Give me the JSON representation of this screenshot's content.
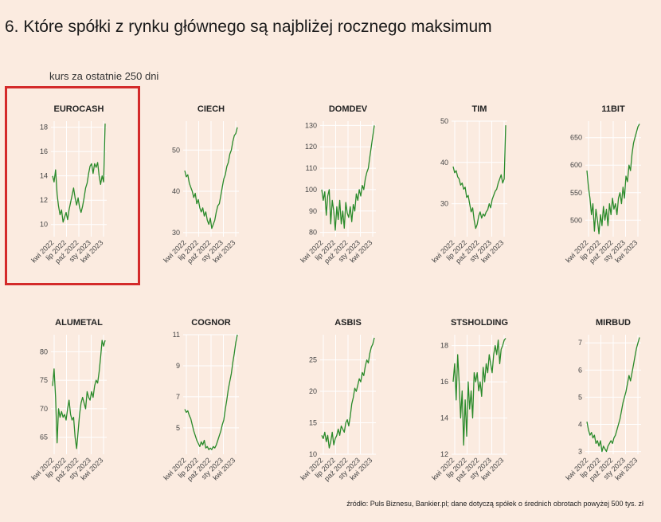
{
  "header": {
    "title": "6. Które spółki z rynku głównego są najbliżej rocznego maksimum",
    "subtitle": "kurs za ostatnie 250 dni"
  },
  "footer": {
    "source": "źródło: Puls Biznesu, Bankier.pl; dane dotyczą spółek o średnich obrotach powyżej 500 tys. zł"
  },
  "colors": {
    "background": "#fbebe0",
    "line": "#2a8a2a",
    "grid": "#ffffff",
    "highlight": "#d42a2a"
  },
  "x_tick_labels": [
    "kwi 2022",
    "lip 2022",
    "paź 2022",
    "sty 2023",
    "kwi 2023"
  ],
  "chart_data": [
    {
      "type": "line",
      "title": "EUROCASH",
      "ylim": [
        9,
        18.5
      ],
      "yticks": [
        10,
        12,
        14,
        16,
        18
      ],
      "highlighted": true,
      "series": [
        {
          "values": [
            14,
            13.5,
            14.5,
            12.5,
            11.5,
            10.8,
            11.2,
            10.2,
            10.6,
            11.0,
            10.4,
            11.2,
            11.8,
            12.4,
            13.0,
            12.2,
            11.6,
            12.2,
            11.4,
            11.0,
            11.5,
            12.2,
            13.0,
            13.4,
            14.2,
            14.8,
            15.0,
            14.2,
            15.0,
            14.7,
            15.1,
            14.0,
            13.3,
            14.0,
            13.5,
            18.3
          ]
        }
      ]
    },
    {
      "type": "line",
      "title": "CIECH",
      "ylim": [
        29,
        57
      ],
      "yticks": [
        30,
        40,
        50
      ],
      "series": [
        {
          "values": [
            45,
            43.5,
            44,
            42,
            41,
            40,
            38.5,
            39.5,
            37,
            38,
            36,
            35,
            36,
            34,
            35,
            33,
            32,
            33.5,
            31,
            32,
            33,
            35,
            36.5,
            37,
            39,
            41,
            43,
            44,
            46,
            47,
            49,
            50,
            52,
            53.5,
            54,
            55.5
          ]
        }
      ]
    },
    {
      "type": "line",
      "title": "DOMDEV",
      "ylim": [
        78,
        132
      ],
      "yticks": [
        80,
        90,
        100,
        110,
        120,
        130
      ],
      "series": [
        {
          "values": [
            100,
            95,
            99,
            88,
            97,
            100,
            84,
            95,
            90,
            81,
            92,
            86,
            95,
            84,
            90,
            82,
            94,
            89,
            87,
            92,
            85,
            93,
            90,
            98,
            95,
            100,
            97,
            102,
            100,
            105,
            108,
            110,
            115,
            120,
            125,
            130
          ]
        }
      ]
    },
    {
      "type": "line",
      "title": "TIM",
      "ylim": [
        22,
        50
      ],
      "yticks": [
        30,
        40,
        50
      ],
      "series": [
        {
          "values": [
            39,
            37.5,
            38,
            36.5,
            36,
            34.5,
            35,
            33.5,
            34,
            31.5,
            32,
            30,
            28,
            29,
            26,
            24,
            25,
            27,
            28,
            26.5,
            27.5,
            27,
            28,
            28.5,
            30,
            29,
            31,
            32,
            33,
            33.5,
            35,
            36,
            37,
            35,
            36,
            49
          ]
        }
      ]
    },
    {
      "type": "line",
      "title": "11BIT",
      "ylim": [
        470,
        680
      ],
      "yticks": [
        500,
        550,
        600,
        650
      ],
      "series": [
        {
          "values": [
            590,
            560,
            540,
            510,
            530,
            480,
            520,
            500,
            475,
            510,
            490,
            525,
            500,
            520,
            490,
            530,
            510,
            540,
            520,
            530,
            510,
            540,
            550,
            530,
            560,
            540,
            580,
            570,
            600,
            590,
            620,
            640,
            650,
            660,
            670,
            675
          ]
        }
      ]
    },
    {
      "type": "line",
      "title": "ALUMETAL",
      "ylim": [
        62,
        83
      ],
      "yticks": [
        65,
        70,
        75,
        80
      ],
      "series": [
        {
          "values": [
            74,
            77,
            72,
            64,
            70,
            68.5,
            69.5,
            68.5,
            69,
            68,
            70,
            71.5,
            69,
            68,
            68.5,
            65,
            63,
            66,
            69,
            71,
            72,
            71,
            70,
            73,
            72,
            71.5,
            73,
            72,
            74,
            75,
            74.5,
            76.5,
            79,
            82,
            81,
            82
          ]
        }
      ]
    },
    {
      "type": "line",
      "title": "COGNOR",
      "ylim": [
        3.3,
        11
      ],
      "yticks": [
        5,
        7,
        9,
        11
      ],
      "series": [
        {
          "values": [
            6.2,
            6.0,
            6.1,
            5.8,
            5.6,
            5.2,
            4.8,
            4.5,
            4.2,
            4.0,
            3.8,
            4.1,
            3.9,
            4.2,
            3.7,
            3.8,
            3.6,
            3.7,
            3.6,
            3.8,
            3.7,
            3.9,
            4.2,
            4.5,
            4.8,
            5.2,
            5.5,
            6.2,
            6.8,
            7.5,
            8.0,
            8.5,
            9.2,
            9.8,
            10.5,
            11.0
          ]
        }
      ]
    },
    {
      "type": "line",
      "title": "ASBIS",
      "ylim": [
        10,
        29
      ],
      "yticks": [
        10,
        15,
        20,
        25
      ],
      "series": [
        {
          "values": [
            13,
            12.5,
            13.5,
            12,
            13,
            11,
            12,
            13.5,
            11.5,
            12.5,
            13,
            14,
            13,
            14.5,
            14,
            13.5,
            15,
            15.5,
            14.5,
            16,
            18,
            19,
            20.5,
            20,
            21,
            22,
            21.5,
            23,
            22.5,
            24,
            25,
            24.5,
            26,
            27,
            27.5,
            28.5
          ]
        }
      ]
    },
    {
      "type": "line",
      "title": "STSHOLDING",
      "ylim": [
        12,
        18.6
      ],
      "yticks": [
        12,
        14,
        16,
        18
      ],
      "series": [
        {
          "values": [
            16,
            17,
            15,
            17.5,
            16,
            14,
            15.5,
            12.5,
            15,
            13,
            16,
            14.5,
            15.5,
            14,
            16.5,
            16,
            16.5,
            15.5,
            16,
            15.2,
            16.8,
            16,
            17,
            16.5,
            17.5,
            17,
            16.5,
            17.5,
            18,
            17.5,
            18.3,
            17,
            17.8,
            18,
            18.3,
            18.4
          ]
        }
      ]
    },
    {
      "type": "line",
      "title": "MIRBUD",
      "ylim": [
        2.9,
        7.3
      ],
      "yticks": [
        3,
        4,
        5,
        6,
        7
      ],
      "series": [
        {
          "values": [
            4.1,
            3.8,
            3.6,
            3.7,
            3.5,
            3.6,
            3.3,
            3.4,
            3.2,
            3.4,
            3.0,
            3.2,
            3.1,
            3.0,
            3.2,
            3.3,
            3.4,
            3.3,
            3.5,
            3.6,
            3.8,
            4.0,
            4.2,
            4.5,
            4.8,
            5.0,
            5.2,
            5.5,
            5.8,
            5.6,
            5.9,
            6.2,
            6.5,
            6.8,
            7.0,
            7.2
          ]
        }
      ]
    }
  ]
}
